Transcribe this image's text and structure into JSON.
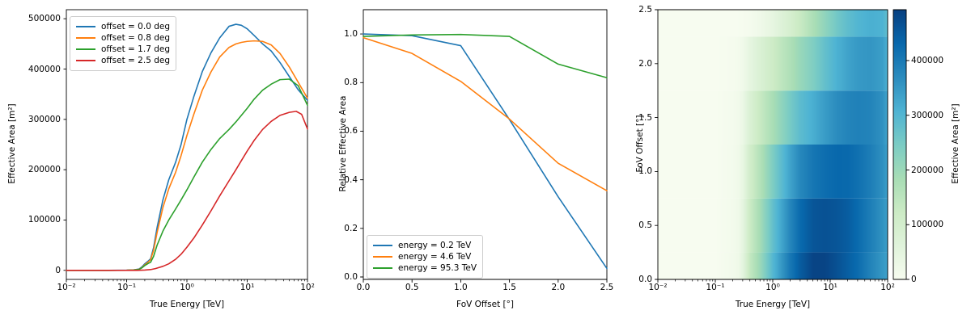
{
  "figure": {
    "background": "#ffffff",
    "spine_color": "#000000",
    "text_color": "#000000"
  },
  "chart_data": [
    {
      "id": "effective-area-vs-true-energy",
      "type": "line",
      "x_scale": "log",
      "xlabel": "True Energy [TeV]",
      "ylabel": "Effective Area [m²]",
      "xlim": [
        0.01,
        100
      ],
      "ylim": [
        -18000,
        518000
      ],
      "xtick_values": [
        0.01,
        0.1,
        1,
        10,
        100
      ],
      "xtick_labels": [
        "10⁻²",
        "10⁻¹",
        "10⁰",
        "10¹",
        "10²"
      ],
      "ytick_values": [
        0,
        100000,
        200000,
        300000,
        400000,
        500000
      ],
      "ytick_labels": [
        "0",
        "100000",
        "200000",
        "300000",
        "400000",
        "500000"
      ],
      "legend_loc": "upper left",
      "grid": false,
      "series": [
        {
          "name": "offset = 0.0 deg",
          "color": "#1f77b4",
          "x": [
            0.01,
            0.05,
            0.1,
            0.13,
            0.16,
            0.18,
            0.2,
            0.23,
            0.25,
            0.28,
            0.32,
            0.4,
            0.5,
            0.65,
            0.8,
            1.0,
            1.3,
            1.8,
            2.5,
            3.5,
            5.0,
            6.5,
            8.0,
            10,
            13,
            18,
            25,
            35,
            50,
            70,
            100
          ],
          "y": [
            0,
            0,
            300,
            800,
            2500,
            7000,
            13000,
            19000,
            23000,
            45000,
            85000,
            140000,
            180000,
            215000,
            250000,
            300000,
            345000,
            395000,
            432000,
            462000,
            485000,
            489000,
            487000,
            480000,
            467000,
            450000,
            436000,
            413000,
            385000,
            359000,
            338000
          ]
        },
        {
          "name": "offset = 0.8 deg",
          "color": "#ff7f0e",
          "x": [
            0.01,
            0.05,
            0.1,
            0.13,
            0.16,
            0.18,
            0.2,
            0.23,
            0.25,
            0.28,
            0.32,
            0.4,
            0.5,
            0.65,
            0.8,
            1.0,
            1.3,
            1.8,
            2.5,
            3.5,
            5.0,
            6.5,
            8.0,
            10,
            13,
            18,
            25,
            35,
            50,
            70,
            100
          ],
          "y": [
            0,
            0,
            250,
            700,
            2000,
            5500,
            11000,
            17000,
            21000,
            40000,
            75000,
            125000,
            162000,
            195000,
            228000,
            268000,
            310000,
            358000,
            394000,
            424000,
            443000,
            450000,
            453000,
            455000,
            456000,
            455000,
            448000,
            431000,
            404000,
            374000,
            342000
          ]
        },
        {
          "name": "offset = 1.7 deg",
          "color": "#2ca02c",
          "x": [
            0.01,
            0.05,
            0.1,
            0.13,
            0.16,
            0.18,
            0.2,
            0.23,
            0.25,
            0.28,
            0.32,
            0.4,
            0.5,
            0.65,
            0.8,
            1.0,
            1.3,
            1.8,
            2.5,
            3.5,
            5.0,
            6.5,
            8.0,
            10,
            13,
            18,
            25,
            35,
            50,
            70,
            100
          ],
          "y": [
            0,
            0,
            200,
            600,
            1800,
            5000,
            9500,
            14000,
            16000,
            28000,
            50000,
            78000,
            100000,
            122000,
            140000,
            160000,
            185000,
            215000,
            240000,
            262000,
            280000,
            295000,
            308000,
            322000,
            340000,
            358000,
            370000,
            379000,
            380000,
            367000,
            328000
          ]
        },
        {
          "name": "offset = 2.5 deg",
          "color": "#d62728",
          "x": [
            0.01,
            0.1,
            0.15,
            0.2,
            0.25,
            0.3,
            0.4,
            0.5,
            0.65,
            0.8,
            1.0,
            1.3,
            1.8,
            2.5,
            3.5,
            5.0,
            6.5,
            8.0,
            10,
            13,
            18,
            25,
            35,
            50,
            65,
            80,
            100
          ],
          "y": [
            0,
            0,
            0,
            500,
            1500,
            3500,
            8000,
            13000,
            22000,
            32000,
            46000,
            64000,
            90000,
            118000,
            148000,
            178000,
            200000,
            218000,
            237000,
            258000,
            280000,
            296000,
            308000,
            314000,
            316000,
            310000,
            281000
          ]
        }
      ]
    },
    {
      "id": "relative-effective-area-vs-fov-offset",
      "type": "line",
      "x_scale": "linear",
      "xlabel": "FoV Offset [°]",
      "ylabel": "Relative Effective Area",
      "xlim": [
        0,
        2.5
      ],
      "ylim": [
        -0.01,
        1.1
      ],
      "xtick_values": [
        0.0,
        0.5,
        1.0,
        1.5,
        2.0,
        2.5
      ],
      "xtick_labels": [
        "0.0",
        "0.5",
        "1.0",
        "1.5",
        "2.0",
        "2.5"
      ],
      "ytick_values": [
        0.0,
        0.2,
        0.4,
        0.6,
        0.8,
        1.0
      ],
      "ytick_labels": [
        "0.0",
        "0.2",
        "0.4",
        "0.6",
        "0.8",
        "1.0"
      ],
      "legend_loc": "lower left",
      "grid": false,
      "series": [
        {
          "name": "energy = 0.2 TeV",
          "color": "#1f77b4",
          "x": [
            0,
            0.5,
            1.0,
            1.5,
            2.0,
            2.5
          ],
          "y": [
            1.0,
            0.993,
            0.952,
            0.648,
            0.33,
            0.035
          ]
        },
        {
          "name": "energy = 4.6 TeV",
          "color": "#ff7f0e",
          "x": [
            0,
            0.5,
            1.0,
            1.5,
            2.0,
            2.5
          ],
          "y": [
            0.985,
            0.92,
            0.805,
            0.65,
            0.468,
            0.355
          ]
        },
        {
          "name": "energy = 95.3 TeV",
          "color": "#2ca02c",
          "x": [
            0,
            0.5,
            1.0,
            1.5,
            2.0,
            2.5
          ],
          "y": [
            0.99,
            0.996,
            0.998,
            0.99,
            0.876,
            0.82
          ]
        }
      ]
    },
    {
      "id": "effective-area-heatmap",
      "type": "heatmap",
      "x_scale": "log",
      "xlabel": "True Energy [TeV]",
      "ylabel": "FoV Offset [°]",
      "xlim": [
        0.01,
        100
      ],
      "ylim": [
        0,
        2.5
      ],
      "xtick_values": [
        0.01,
        0.1,
        1,
        10,
        100
      ],
      "xtick_labels": [
        "10⁻²",
        "10⁻¹",
        "10⁰",
        "10¹",
        "10²"
      ],
      "ytick_values": [
        0.0,
        0.5,
        1.0,
        1.5,
        2.0,
        2.5
      ],
      "ytick_labels": [
        "0.0",
        "0.5",
        "1.0",
        "1.5",
        "2.0",
        "2.5"
      ],
      "row_offsets": [
        0.0,
        0.5,
        1.0,
        1.5,
        2.0,
        2.5
      ],
      "row_edges": [
        0.0,
        0.25,
        0.75,
        1.25,
        1.75,
        2.25,
        2.5
      ],
      "x_energies": [
        0.01,
        0.1,
        0.2,
        0.25,
        0.3,
        0.4,
        0.6,
        1,
        2,
        3,
        5,
        8,
        13,
        20,
        30,
        50,
        80,
        100
      ],
      "values": [
        [
          0,
          500,
          13000,
          23000,
          55000,
          140000,
          205000,
          300000,
          405000,
          450000,
          487000,
          487000,
          467000,
          446000,
          424000,
          385000,
          352000,
          338000
        ],
        [
          0,
          450,
          11500,
          21500,
          49000,
          127000,
          192000,
          280000,
          381000,
          428000,
          460000,
          466000,
          460000,
          448000,
          426000,
          393000,
          360000,
          340000
        ],
        [
          0,
          380,
          10400,
          19500,
          41000,
          110000,
          168000,
          244000,
          335000,
          378000,
          407000,
          422000,
          431000,
          430000,
          417000,
          394000,
          364000,
          339000
        ],
        [
          0,
          320,
          9000,
          16500,
          33000,
          82000,
          131000,
          184000,
          253000,
          288000,
          316000,
          345000,
          370000,
          383000,
          389000,
          384000,
          361000,
          331000
        ],
        [
          0,
          190,
          5500,
          10500,
          20000,
          48000,
          81000,
          121000,
          174000,
          207000,
          240000,
          278000,
          311000,
          334000,
          349000,
          355000,
          341000,
          310000
        ],
        [
          0,
          0,
          500,
          1500,
          3500,
          8000,
          22000,
          46000,
          95000,
          130000,
          178000,
          218000,
          258000,
          284000,
          302000,
          314000,
          308000,
          281000
        ]
      ],
      "vmin": 0,
      "vmax": 493000,
      "colormap_name": "GnBu",
      "colormap_stops": {
        "positions": [
          0,
          0.125,
          0.25,
          0.375,
          0.5,
          0.625,
          0.75,
          0.875,
          1
        ],
        "colors": [
          "#f7fcf0",
          "#e0f3db",
          "#ccebc5",
          "#a8ddb5",
          "#7bccc4",
          "#4eb3d3",
          "#2b8cbe",
          "#0868ac",
          "#084081"
        ]
      },
      "colorbar": {
        "label": "Effective Area [m²]",
        "tick_values": [
          0,
          100000,
          200000,
          300000,
          400000
        ],
        "tick_labels": [
          "0",
          "100000",
          "200000",
          "300000",
          "400000"
        ]
      }
    }
  ]
}
